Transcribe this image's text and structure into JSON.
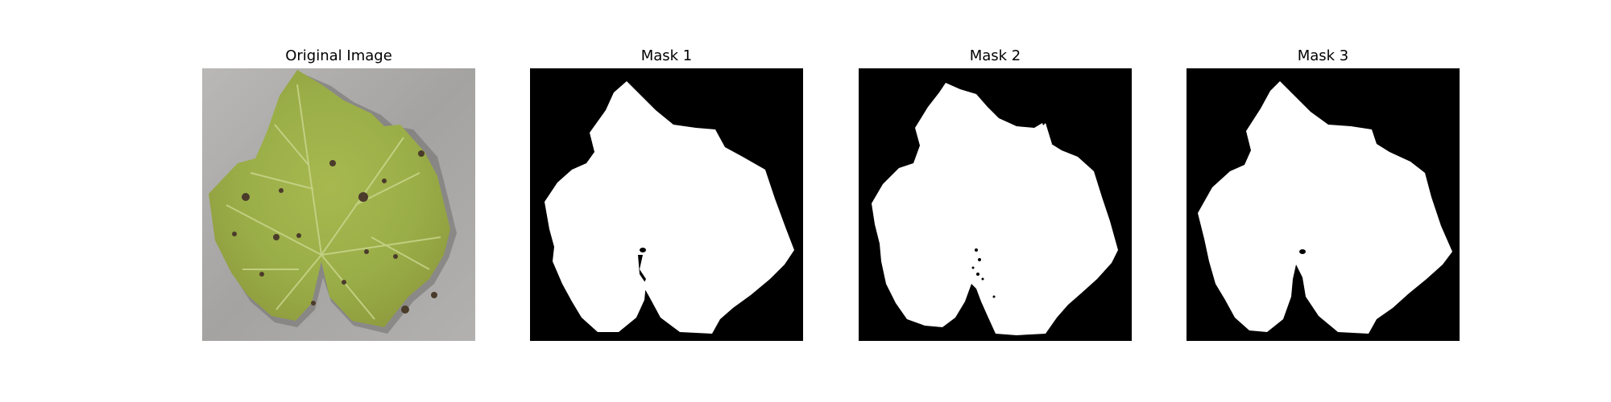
{
  "figure": {
    "panels": [
      {
        "title": "Original Image",
        "kind": "photo"
      },
      {
        "title": "Mask 1",
        "kind": "mask"
      },
      {
        "title": "Mask 2",
        "kind": "mask"
      },
      {
        "title": "Mask 3",
        "kind": "mask"
      }
    ]
  },
  "colors": {
    "background": "#ffffff",
    "mask_background": "#000000",
    "mask_foreground": "#ffffff",
    "photo_background": "#a9a8a6",
    "leaf_light": "#b6c65c",
    "leaf_mid": "#9db04a",
    "leaf_dark": "#7f8f3a",
    "lesion": "#4a3a2a",
    "vein": "#c8d48a"
  }
}
